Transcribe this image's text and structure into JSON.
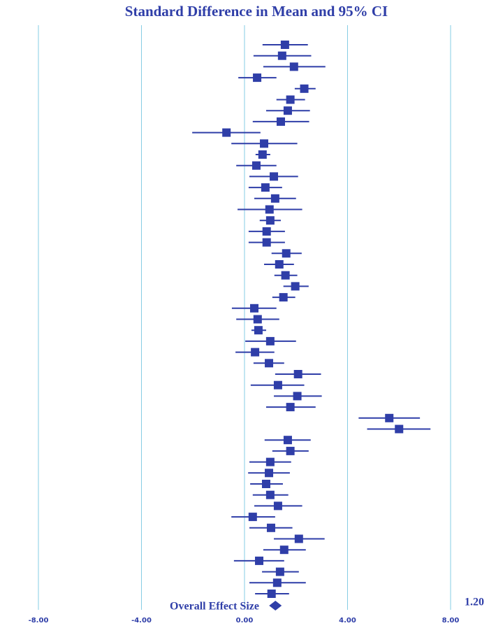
{
  "chart_data": {
    "type": "forest",
    "title": "Standard Difference in Mean and 95% CI",
    "color": "#2f3ea8",
    "grid": true,
    "grid_color": "#86cde4",
    "xlim": [
      -8,
      8
    ],
    "xticks": [
      {
        "value": -8,
        "label": "-8.00"
      },
      {
        "value": -4,
        "label": "-4.00"
      },
      {
        "value": 0,
        "label": "0.00"
      },
      {
        "value": 4,
        "label": "4.00"
      },
      {
        "value": 8,
        "label": "8.00"
      }
    ],
    "values": [
      1.57,
      1.46,
      1.92,
      0.49,
      2.32,
      1.78,
      1.68,
      1.41,
      -0.7,
      0.76,
      0.7,
      0.46,
      1.14,
      0.81,
      1.19,
      0.97,
      1.0,
      0.86,
      0.86,
      1.62,
      1.35,
      1.59,
      1.97,
      1.51,
      0.38,
      0.51,
      0.54,
      1.0,
      0.41,
      0.95,
      2.08,
      1.3,
      2.05,
      1.78,
      5.62,
      6.0,
      1.68,
      1.78,
      1.0,
      0.95,
      0.84,
      1.0,
      1.3,
      0.32,
      1.03,
      2.11,
      1.54,
      0.57,
      1.38,
      1.27,
      1.05
    ],
    "lower": [
      0.7,
      0.35,
      0.73,
      -0.24,
      1.95,
      1.24,
      0.84,
      0.32,
      -2.03,
      -0.51,
      0.43,
      -0.32,
      0.19,
      0.16,
      0.38,
      -0.27,
      0.59,
      0.16,
      0.16,
      1.05,
      0.76,
      1.16,
      1.51,
      1.08,
      -0.49,
      -0.32,
      0.27,
      0.03,
      -0.35,
      0.35,
      1.19,
      0.24,
      1.14,
      0.84,
      4.43,
      4.76,
      0.78,
      1.08,
      0.19,
      0.14,
      0.22,
      0.32,
      0.38,
      -0.51,
      0.19,
      1.14,
      0.73,
      -0.41,
      0.68,
      0.19,
      0.41
    ],
    "upper": [
      2.46,
      2.59,
      3.14,
      1.24,
      2.76,
      2.35,
      2.54,
      2.51,
      0.62,
      2.05,
      1.0,
      1.24,
      2.08,
      1.46,
      2.0,
      2.24,
      1.41,
      1.57,
      1.57,
      2.22,
      1.92,
      2.05,
      2.49,
      1.97,
      1.24,
      1.35,
      0.84,
      2.0,
      1.16,
      1.54,
      2.97,
      2.32,
      3.0,
      2.76,
      6.81,
      7.22,
      2.57,
      2.49,
      1.81,
      1.76,
      1.49,
      1.7,
      2.24,
      1.19,
      1.86,
      3.11,
      2.38,
      1.54,
      2.11,
      2.38,
      1.73
    ],
    "overall": {
      "name": "Overall Effect Size",
      "value": 1.2,
      "value_label": "1.20"
    }
  }
}
